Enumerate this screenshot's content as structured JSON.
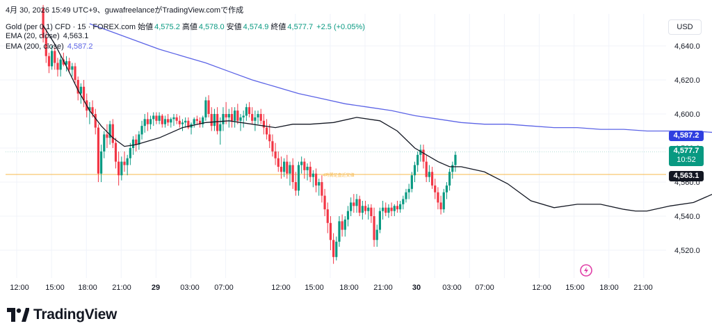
{
  "header": {
    "snapshot_line": "4月 30, 2026 15:49 UTC+9、guwafreelanceがTradingView.comで作成",
    "symbol": "Gold (per 0.1) CFD · 15 · FOREX.com",
    "open_label": "始値",
    "open_value": "4,575.2",
    "high_label": "高値",
    "high_value": "4,578.0",
    "low_label": "安値",
    "low_value": "4,574.9",
    "close_label": "終値",
    "close_value": "4,577.7",
    "change": "+2.5 (+0.05%)",
    "ema20_label": "EMA (20, close)",
    "ema20_value": "4,563.1",
    "ema200_label": "EMA (200, close)",
    "ema200_value": "4,587.2"
  },
  "currency_button": "USD",
  "tags": {
    "ema200": "4,587.2",
    "price": "4,577.7",
    "countdown": "10:52",
    "ema20": "4,563.1"
  },
  "hline_label": "4時間足直近安値",
  "logo": {
    "text": "TradingView"
  },
  "colors": {
    "up": "#089981",
    "down": "#f23645",
    "ema20": "#131722",
    "ema200": "#5b63e6",
    "hline": "#f7b84b",
    "price_tag": "#089981",
    "ema200_tag": "#2f3fe0",
    "ema20_tag": "#131722",
    "grid": "#f0f3fa",
    "axis_text": "#131722"
  },
  "chart_data": {
    "type": "candlestick",
    "y_axis": {
      "ticks": [
        4520,
        4540,
        4560,
        4580,
        4600,
        4620,
        4640
      ],
      "tick_labels": [
        "4,520.0",
        "4,540.0",
        "4,560.0",
        "4,580.0",
        "4,600.0",
        "4,620.0",
        "4,640.0"
      ],
      "range": [
        4510,
        4650
      ]
    },
    "x_axis": {
      "ticks": [
        "12:00",
        "15:00",
        "18:00",
        "21:00",
        "29",
        "03:00",
        "07:00",
        "12:00",
        "15:00",
        "18:00",
        "21:00",
        "30",
        "03:00",
        "07:00",
        "12:00",
        "15:00",
        "18:00",
        "21:00"
      ]
    },
    "horizontal_line": 4564.5,
    "series": [
      {
        "name": "EMA (20, close)",
        "points": [
          [
            15.0,
            4652
          ],
          [
            16.0,
            4641
          ],
          [
            17.0,
            4628
          ],
          [
            18.0,
            4614
          ],
          [
            19.0,
            4602
          ],
          [
            20.0,
            4593
          ],
          [
            21.0,
            4586
          ],
          [
            22.0,
            4581
          ],
          [
            23.0,
            4582
          ],
          [
            25.0,
            4586
          ],
          [
            27.0,
            4592
          ],
          [
            29.0,
            4595
          ],
          [
            31.0,
            4596
          ],
          [
            33.0,
            4594
          ],
          [
            35.0,
            4592
          ],
          [
            36.5,
            4594
          ],
          [
            38.0,
            4594
          ],
          [
            40.0,
            4595
          ],
          [
            42.0,
            4598
          ],
          [
            44.0,
            4596
          ],
          [
            45.5,
            4590
          ],
          [
            47.0,
            4580
          ],
          [
            49.0,
            4572
          ],
          [
            50.0,
            4569
          ],
          [
            51.0,
            4569
          ],
          [
            53.0,
            4566
          ],
          [
            55.0,
            4559
          ],
          [
            57.0,
            4549
          ],
          [
            59.0,
            4545
          ],
          [
            61.0,
            4547
          ],
          [
            63.0,
            4547
          ],
          [
            65.0,
            4544
          ],
          [
            66.0,
            4543
          ],
          [
            67.0,
            4543
          ],
          [
            69.0,
            4546
          ],
          [
            71.0,
            4548
          ],
          [
            73.0,
            4554
          ],
          [
            75.0,
            4561
          ],
          [
            76.5,
            4564
          ],
          [
            78.0,
            4563
          ],
          [
            80.0,
            4559
          ],
          [
            82.0,
            4560
          ],
          [
            83.5,
            4563
          ]
        ]
      },
      {
        "name": "EMA (200, close)",
        "points": [
          [
            19.0,
            4653
          ],
          [
            21.0,
            4648
          ],
          [
            23.0,
            4643
          ],
          [
            25.0,
            4638
          ],
          [
            27.0,
            4634
          ],
          [
            29.0,
            4630
          ],
          [
            31.0,
            4625
          ],
          [
            33.0,
            4620
          ],
          [
            35.0,
            4616
          ],
          [
            37.0,
            4612
          ],
          [
            39.0,
            4609
          ],
          [
            41.0,
            4606
          ],
          [
            43.0,
            4604
          ],
          [
            45.0,
            4602
          ],
          [
            47.0,
            4599
          ],
          [
            49.0,
            4597
          ],
          [
            51.0,
            4595
          ],
          [
            53.0,
            4594
          ],
          [
            55.0,
            4594
          ],
          [
            57.0,
            4593
          ],
          [
            59.0,
            4592
          ],
          [
            61.0,
            4592
          ],
          [
            63.0,
            4591
          ],
          [
            65.0,
            4591
          ],
          [
            67.0,
            4590
          ],
          [
            69.0,
            4590
          ],
          [
            71.0,
            4590
          ],
          [
            73.0,
            4589
          ],
          [
            75.0,
            4589
          ],
          [
            77.0,
            4589
          ],
          [
            79.0,
            4588
          ],
          [
            81.0,
            4588
          ],
          [
            83.5,
            4587.2
          ]
        ]
      }
    ],
    "candles": [
      [
        15.0,
        4662,
        4664,
        4642,
        4645
      ],
      [
        15.25,
        4645,
        4650,
        4630,
        4634
      ],
      [
        15.5,
        4634,
        4636,
        4624,
        4628
      ],
      [
        15.75,
        4628,
        4640,
        4626,
        4637
      ],
      [
        16.0,
        4637,
        4639,
        4626,
        4630
      ],
      [
        16.25,
        4630,
        4633,
        4622,
        4626
      ],
      [
        16.5,
        4626,
        4634,
        4622,
        4632
      ],
      [
        16.75,
        4632,
        4636,
        4628,
        4629
      ],
      [
        17.0,
        4629,
        4634,
        4625,
        4631
      ],
      [
        17.25,
        4631,
        4633,
        4624,
        4626
      ],
      [
        17.5,
        4626,
        4630,
        4622,
        4628
      ],
      [
        17.75,
        4628,
        4630,
        4618,
        4620
      ],
      [
        18.0,
        4620,
        4622,
        4608,
        4612
      ],
      [
        18.25,
        4612,
        4618,
        4606,
        4616
      ],
      [
        18.5,
        4616,
        4620,
        4604,
        4608
      ],
      [
        18.75,
        4608,
        4612,
        4598,
        4602
      ],
      [
        19.0,
        4602,
        4607,
        4594,
        4604
      ],
      [
        19.25,
        4604,
        4608,
        4598,
        4600
      ],
      [
        19.5,
        4600,
        4603,
        4588,
        4592
      ],
      [
        19.75,
        4592,
        4594,
        4560,
        4565
      ],
      [
        20.0,
        4565,
        4582,
        4560,
        4578
      ],
      [
        20.25,
        4578,
        4590,
        4574,
        4588
      ],
      [
        20.5,
        4588,
        4594,
        4580,
        4586
      ],
      [
        20.75,
        4586,
        4596,
        4582,
        4594
      ],
      [
        21.0,
        4594,
        4597,
        4580,
        4583
      ],
      [
        21.25,
        4583,
        4586,
        4568,
        4572
      ],
      [
        21.5,
        4572,
        4578,
        4558,
        4564
      ],
      [
        21.75,
        4564,
        4575,
        4561,
        4572
      ],
      [
        22.0,
        4572,
        4578,
        4566,
        4570
      ],
      [
        22.25,
        4570,
        4576,
        4564,
        4574
      ],
      [
        22.5,
        4574,
        4583,
        4570,
        4580
      ],
      [
        22.75,
        4580,
        4587,
        4576,
        4585
      ],
      [
        23.0,
        4585,
        4588,
        4578,
        4582
      ],
      [
        23.25,
        4582,
        4590,
        4579,
        4588
      ],
      [
        23.5,
        4588,
        4596,
        4585,
        4593
      ],
      [
        23.75,
        4593,
        4600,
        4589,
        4597
      ],
      [
        24.0,
        4597,
        4601,
        4590,
        4594
      ],
      [
        24.25,
        4594,
        4599,
        4591,
        4597
      ],
      [
        24.5,
        4597,
        4601,
        4593,
        4599
      ],
      [
        24.75,
        4599,
        4601,
        4594,
        4596
      ],
      [
        25.0,
        4596,
        4601,
        4594,
        4599
      ],
      [
        25.25,
        4599,
        4600,
        4592,
        4594
      ],
      [
        25.5,
        4594,
        4599,
        4592,
        4597
      ],
      [
        25.75,
        4597,
        4600,
        4593,
        4595
      ],
      [
        26.0,
        4595,
        4598,
        4592,
        4597
      ],
      [
        26.25,
        4597,
        4600,
        4593,
        4598
      ],
      [
        26.5,
        4598,
        4600,
        4594,
        4596
      ],
      [
        26.75,
        4596,
        4599,
        4592,
        4594
      ],
      [
        27.0,
        4594,
        4597,
        4590,
        4595
      ],
      [
        27.25,
        4595,
        4598,
        4592,
        4596
      ],
      [
        27.5,
        4596,
        4598,
        4591,
        4592
      ],
      [
        27.75,
        4592,
        4595,
        4588,
        4594
      ],
      [
        28.0,
        4594,
        4598,
        4592,
        4597
      ],
      [
        28.25,
        4597,
        4599,
        4594,
        4596
      ],
      [
        28.5,
        4596,
        4598,
        4592,
        4594
      ],
      [
        28.75,
        4594,
        4599,
        4592,
        4598
      ],
      [
        29.0,
        4598,
        4610,
        4596,
        4608
      ],
      [
        29.25,
        4608,
        4611,
        4598,
        4600
      ],
      [
        29.5,
        4600,
        4604,
        4590,
        4593
      ],
      [
        29.75,
        4593,
        4603,
        4590,
        4600
      ],
      [
        30.0,
        4600,
        4604,
        4588,
        4590
      ],
      [
        30.25,
        4590,
        4598,
        4582,
        4594
      ],
      [
        30.5,
        4594,
        4604,
        4590,
        4600
      ],
      [
        30.75,
        4600,
        4607,
        4594,
        4598
      ],
      [
        31.0,
        4598,
        4603,
        4592,
        4600
      ],
      [
        31.25,
        4600,
        4604,
        4592,
        4596
      ],
      [
        31.5,
        4596,
        4604,
        4592,
        4602
      ],
      [
        31.75,
        4602,
        4606,
        4594,
        4596
      ],
      [
        32.0,
        4596,
        4600,
        4590,
        4598
      ],
      [
        32.25,
        4598,
        4602,
        4592,
        4599
      ],
      [
        32.5,
        4599,
        4606,
        4596,
        4604
      ],
      [
        32.75,
        4604,
        4607,
        4598,
        4600
      ],
      [
        33.0,
        4600,
        4604,
        4594,
        4596
      ],
      [
        33.25,
        4596,
        4602,
        4590,
        4598
      ],
      [
        33.5,
        4598,
        4602,
        4594,
        4600
      ],
      [
        33.75,
        4600,
        4603,
        4594,
        4596
      ],
      [
        34.0,
        4596,
        4600,
        4588,
        4592
      ],
      [
        34.25,
        4592,
        4597,
        4585,
        4588
      ],
      [
        34.5,
        4588,
        4594,
        4580,
        4584
      ],
      [
        34.75,
        4584,
        4588,
        4575,
        4578
      ],
      [
        35.0,
        4578,
        4583,
        4570,
        4574
      ],
      [
        35.25,
        4574,
        4578,
        4566,
        4569
      ],
      [
        35.5,
        4569,
        4575,
        4562,
        4566
      ],
      [
        35.75,
        4566,
        4574,
        4563,
        4572
      ],
      [
        36.0,
        4572,
        4576,
        4562,
        4565
      ],
      [
        36.25,
        4565,
        4572,
        4558,
        4570
      ],
      [
        36.5,
        4570,
        4574,
        4556,
        4560
      ],
      [
        36.75,
        4560,
        4566,
        4552,
        4555
      ],
      [
        37.0,
        4555,
        4572,
        4552,
        4570
      ],
      [
        37.25,
        4570,
        4575,
        4565,
        4572
      ],
      [
        37.5,
        4572,
        4574,
        4562,
        4567
      ],
      [
        37.75,
        4567,
        4571,
        4561,
        4569
      ],
      [
        38.0,
        4569,
        4572,
        4560,
        4563
      ],
      [
        38.25,
        4563,
        4567,
        4557,
        4565
      ],
      [
        38.5,
        4565,
        4568,
        4554,
        4558
      ],
      [
        38.75,
        4558,
        4562,
        4552,
        4560
      ],
      [
        39.0,
        4560,
        4564,
        4548,
        4552
      ],
      [
        39.25,
        4552,
        4556,
        4540,
        4544
      ],
      [
        39.5,
        4544,
        4548,
        4530,
        4536
      ],
      [
        39.75,
        4536,
        4540,
        4520,
        4526
      ],
      [
        40.0,
        4526,
        4530,
        4512,
        4516
      ],
      [
        40.25,
        4516,
        4528,
        4514,
        4525
      ],
      [
        40.5,
        4525,
        4540,
        4522,
        4537
      ],
      [
        40.75,
        4537,
        4541,
        4528,
        4532
      ],
      [
        41.0,
        4532,
        4540,
        4528,
        4538
      ],
      [
        41.25,
        4538,
        4546,
        4534,
        4543
      ],
      [
        41.5,
        4543,
        4551,
        4540,
        4548
      ],
      [
        41.75,
        4548,
        4553,
        4542,
        4546
      ],
      [
        42.0,
        4546,
        4553,
        4542,
        4550
      ],
      [
        42.25,
        4550,
        4552,
        4540,
        4542
      ],
      [
        42.5,
        4542,
        4549,
        4538,
        4546
      ],
      [
        42.75,
        4546,
        4549,
        4541,
        4543
      ],
      [
        43.0,
        4543,
        4547,
        4538,
        4545
      ],
      [
        43.25,
        4545,
        4547,
        4536,
        4540
      ],
      [
        43.5,
        4540,
        4545,
        4522,
        4526
      ],
      [
        43.75,
        4526,
        4535,
        4522,
        4532
      ],
      [
        44.0,
        4532,
        4545,
        4530,
        4543
      ],
      [
        44.25,
        4543,
        4549,
        4538,
        4545
      ],
      [
        44.5,
        4545,
        4548,
        4540,
        4542
      ],
      [
        44.75,
        4542,
        4547,
        4539,
        4545
      ],
      [
        45.0,
        4545,
        4548,
        4540,
        4543
      ],
      [
        45.25,
        4543,
        4547,
        4540,
        4546
      ],
      [
        45.5,
        4546,
        4549,
        4542,
        4544
      ],
      [
        45.75,
        4544,
        4549,
        4542,
        4547
      ],
      [
        46.0,
        4547,
        4552,
        4544,
        4550
      ],
      [
        46.25,
        4550,
        4556,
        4548,
        4554
      ],
      [
        46.5,
        4554,
        4559,
        4550,
        4556
      ],
      [
        46.75,
        4556,
        4566,
        4554,
        4564
      ],
      [
        47.0,
        4564,
        4572,
        4560,
        4570
      ],
      [
        47.25,
        4570,
        4578,
        4566,
        4576
      ],
      [
        47.5,
        4576,
        4582,
        4572,
        4579
      ],
      [
        47.75,
        4579,
        4582,
        4568,
        4572
      ],
      [
        48.0,
        4572,
        4576,
        4560,
        4563
      ],
      [
        48.25,
        4563,
        4570,
        4560,
        4566
      ],
      [
        48.5,
        4566,
        4569,
        4556,
        4558
      ],
      [
        48.75,
        4558,
        4562,
        4550,
        4554
      ],
      [
        49.0,
        4554,
        4557,
        4544,
        4548
      ],
      [
        49.25,
        4548,
        4552,
        4541,
        4544
      ],
      [
        49.5,
        4544,
        4556,
        4542,
        4554
      ],
      [
        49.75,
        4554,
        4560,
        4550,
        4558
      ],
      [
        50.0,
        4558,
        4568,
        4555,
        4566
      ],
      [
        50.25,
        4566,
        4572,
        4562,
        4570
      ],
      [
        50.5,
        4570,
        4578,
        4566,
        4576
      ]
    ]
  }
}
